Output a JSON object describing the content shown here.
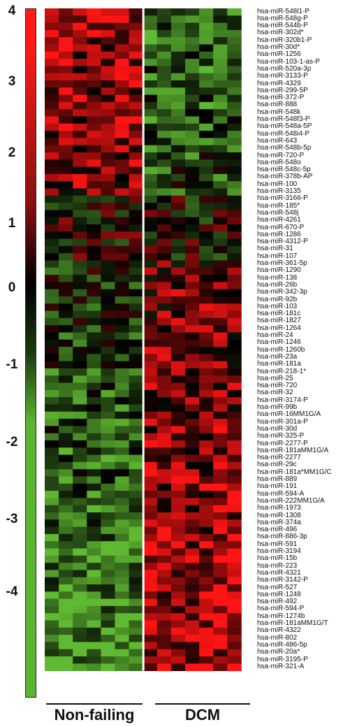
{
  "chart_data": {
    "type": "heatmap",
    "title": "",
    "xlabel": "",
    "ylabel": "",
    "colormap": {
      "low": "#5ab431",
      "mid": "#000000",
      "high": "#ff1a1a"
    },
    "scale_ticks": [
      "4",
      "3",
      "2",
      "1",
      "0",
      "-1",
      "-2",
      "-3",
      "-4"
    ],
    "groups": [
      {
        "label": "Non-failing",
        "columns": 7
      },
      {
        "label": "DCM",
        "columns": 7
      }
    ],
    "rows": [
      "hsa-miR-548l1-P",
      "hsa-miR-548g-P",
      "hsa-miR-544b-P",
      "hsa-miR-302d*",
      "hsa-miR-320b1-P",
      "hsa-miR-30d*",
      "hsa-miR-1256",
      "hsa-miR-103-1-as-P",
      "hsa-miR-520a-3p",
      "hsa-miR-3133-P",
      "hsa-miR-4329",
      "hsa-miR-299-5P",
      "hsa-miR-372-P",
      "hsa-miR-888",
      "hsa-miR-548k",
      "hsa-miR-548f3-P",
      "hsa-miR-548a-5P",
      "hsa-miR-548i4-P",
      "hsa-miR-643",
      "hsa-miR-548b-5p",
      "hsa-miR-720-P",
      "hsa-miR-548o",
      "hsa-miR-548c-5p",
      "hsa-miR-378b-AP",
      "hsa-miR-100",
      "hsa-miR-3135",
      "hsa-miR-3166-P",
      "hsa-miR-185*",
      "hsa-miR-548j",
      "hsa-miR-4261",
      "hsa-miR-670-P",
      "hsa-miR-1286",
      "hsa-miR-4312-P",
      "hsa-miR-31",
      "hsa-miR-107",
      "hsa-miR-361-5p",
      "hsa-miR-1290",
      "hsa-miR-138",
      "hsa-miR-26b",
      "hsa-miR-342-3p",
      "hsa-miR-92b",
      "hsa-miR-103",
      "hsa-miR-181c",
      "hsa-miR-1827",
      "hsa-miR-1264",
      "hsa-miR-24",
      "hsa-miR-1246",
      "hsa-miR-1260b",
      "hsa-miR-23a",
      "hsa-miR-181a",
      "hsa-miR-218-1*",
      "hsa-miR-25",
      "hsa-miR-720",
      "hsa-miR-32",
      "hsa-miR-3174-P",
      "hsa-miR-99b",
      "hsa-miR-16MM1G/A",
      "hsa-miR-301a-P",
      "hsa-miR-30d",
      "hsa-miR-325-P",
      "hsa-miR-2277-P",
      "hsa-miR-181aMM1G/A",
      "hsa-miR-2277",
      "hsa-miR-29c",
      "hsa-miR-181a*MM1G/C",
      "hsa-miR-889",
      "hsa-miR-191",
      "hsa-miR-594-A",
      "hsa-miR-222MM1G/A",
      "hsa-miR-1973",
      "hsa-miR-1308",
      "hsa-miR-374a",
      "hsa-miR-496",
      "hsa-miR-886-3p",
      "hsa-miR-591",
      "hsa-miR-3194",
      "hsa-miR-15b",
      "hsa-miR-223",
      "hsa-miR-4321",
      "hsa-miR-3142-P",
      "hsa-miR-527",
      "hsa-miR-1248",
      "hsa-miR-492",
      "hsa-miR-594-P",
      "hsa-miR-1274b",
      "hsa-miR-181aMM1G/T",
      "hsa-miR-4322",
      "hsa-miR-802",
      "hsa-miR-486-5p",
      "hsa-miR-20a*",
      "hsa-miR-3195-P",
      "hsa-miR-321-A"
    ]
  }
}
